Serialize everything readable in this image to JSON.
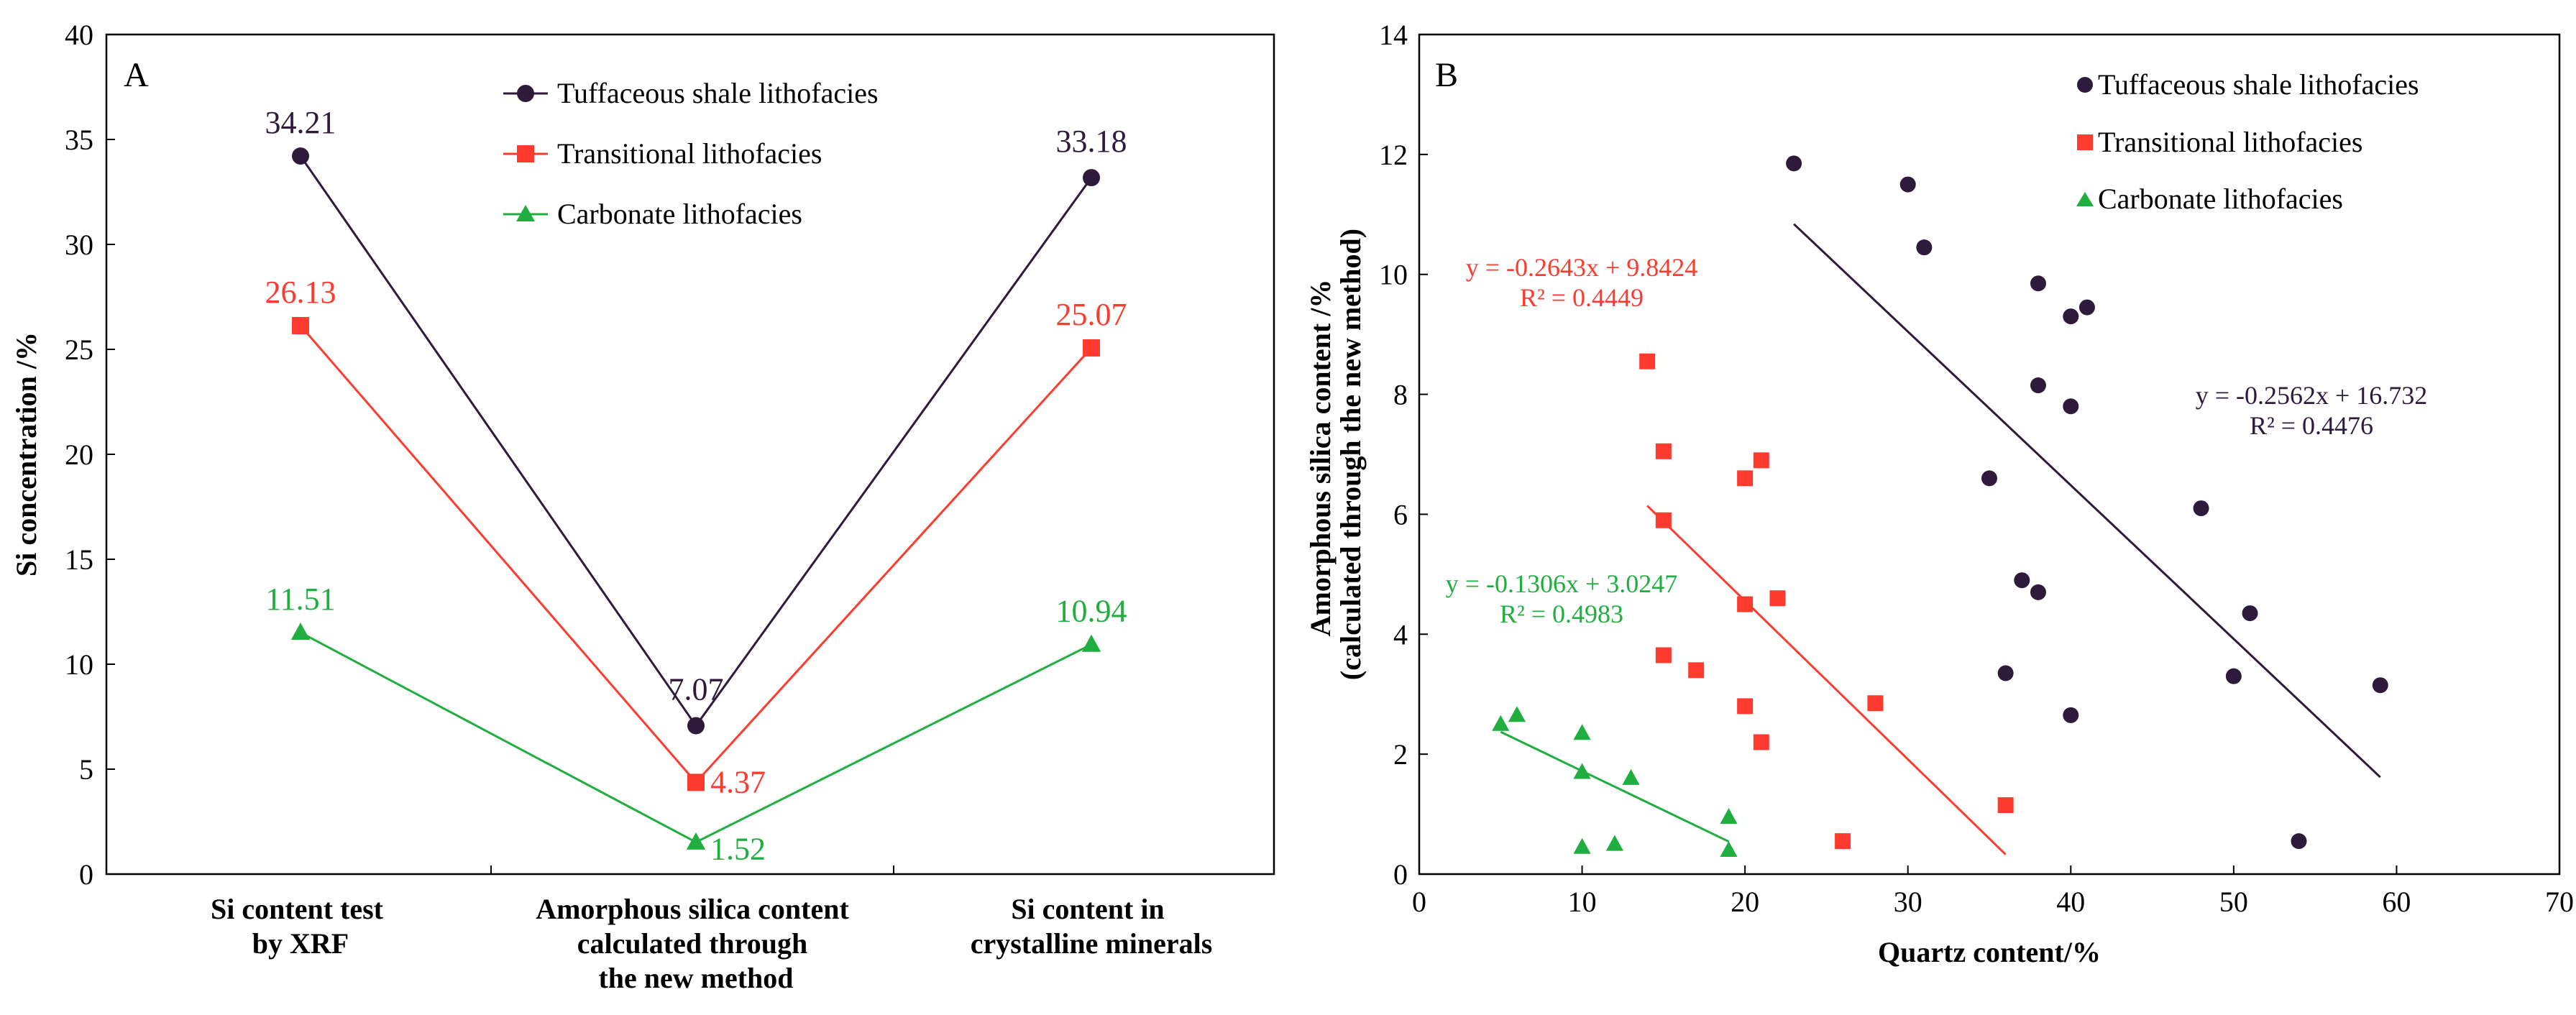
{
  "colors": {
    "tuffaceous": "#2e1a3a",
    "transitional": "#ff3b2f",
    "carbonate": "#1fae3f",
    "axis": "#000000"
  },
  "chart_data": [
    {
      "type": "line",
      "panel_label": "A",
      "ylabel": "Si concentration /%",
      "ylim": [
        0,
        40
      ],
      "yticks": [
        "0",
        "5",
        "10",
        "15",
        "20",
        "25",
        "30",
        "35",
        "40"
      ],
      "categories": [
        [
          "Si content test",
          "by XRF"
        ],
        [
          "Amorphous silica content",
          "calculated through",
          "the new method"
        ],
        [
          "Si content in",
          "crystalline minerals"
        ]
      ],
      "legend_position": "top-right",
      "series": [
        {
          "name": "Tuffaceous shale lithofacies",
          "marker": "circle",
          "color_key": "tuffaceous",
          "values": [
            34.21,
            7.07,
            33.18
          ],
          "labels": [
            "34.21",
            "7.07",
            "33.18"
          ]
        },
        {
          "name": "Transitional lithofacies",
          "marker": "square",
          "color_key": "transitional",
          "values": [
            26.13,
            4.37,
            25.07
          ],
          "labels": [
            "26.13",
            "4.37",
            "25.07"
          ]
        },
        {
          "name": "Carbonate lithofacies",
          "marker": "triangle",
          "color_key": "carbonate",
          "values": [
            11.51,
            1.52,
            10.94
          ],
          "labels": [
            "11.51",
            "1.52",
            "10.94"
          ]
        }
      ]
    },
    {
      "type": "scatter",
      "panel_label": "B",
      "xlabel": "Quartz content/%",
      "ylabel": [
        "Amorphous silica content /%",
        "(calculated through the new method)"
      ],
      "xlim": [
        0,
        70
      ],
      "ylim": [
        0,
        14
      ],
      "xticks": [
        "0",
        "10",
        "20",
        "30",
        "40",
        "50",
        "60",
        "70"
      ],
      "yticks": [
        "0",
        "2",
        "4",
        "6",
        "8",
        "10",
        "12",
        "14"
      ],
      "legend_position": "top-right",
      "series": [
        {
          "name": "Tuffaceous shale lithofacies",
          "marker": "circle",
          "color_key": "tuffaceous",
          "x": [
            23,
            30,
            31,
            38,
            40,
            41,
            38,
            40,
            35,
            37,
            38,
            48,
            36,
            40,
            51,
            50,
            59,
            54
          ],
          "y": [
            11.85,
            11.5,
            10.45,
            9.85,
            9.3,
            9.45,
            8.15,
            7.8,
            6.6,
            4.9,
            4.7,
            6.1,
            3.35,
            2.65,
            4.35,
            3.3,
            3.15,
            0.55
          ],
          "fit": {
            "x_range": [
              23,
              59
            ],
            "slope": -0.2562,
            "intercept": 16.732,
            "equation": "y = -0.2562x + 16.732",
            "r2": "R² = 0.4476"
          }
        },
        {
          "name": "Transitional lithofacies",
          "marker": "square",
          "color_key": "transitional",
          "x": [
            14,
            15,
            15,
            20,
            21,
            20,
            22,
            15,
            17,
            20,
            21,
            28,
            26,
            36
          ],
          "y": [
            8.55,
            7.05,
            5.9,
            6.6,
            6.9,
            4.5,
            4.6,
            3.65,
            3.4,
            2.8,
            2.2,
            2.85,
            0.55,
            1.15
          ],
          "fit": {
            "x_range": [
              14,
              36
            ],
            "slope": -0.2643,
            "intercept": 9.8424,
            "equation": "y = -0.2643x + 9.8424",
            "r2": "R² = 0.4449"
          }
        },
        {
          "name": "Carbonate lithofacies",
          "marker": "triangle",
          "color_key": "carbonate",
          "x": [
            5,
            6,
            10,
            10,
            13,
            10,
            12,
            19,
            19
          ],
          "y": [
            2.5,
            2.65,
            2.35,
            1.7,
            1.6,
            0.45,
            0.5,
            0.95,
            0.4
          ],
          "fit": {
            "x_range": [
              5,
              19
            ],
            "slope": -0.1306,
            "intercept": 3.0247,
            "equation": "y = -0.1306x + 3.0247",
            "r2": "R² = 0.4983"
          }
        }
      ]
    }
  ]
}
